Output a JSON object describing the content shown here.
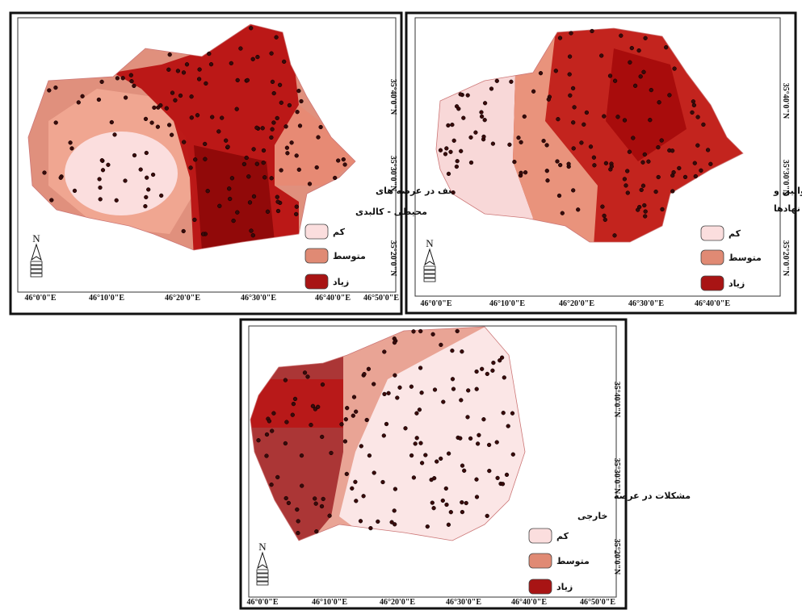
{
  "maps": [
    {
      "legend_title": "ضعف در عرصه های",
      "legend_subtitle": "محیطی - کالبدی",
      "legend": [
        "کم",
        "متوسط",
        "زیاد"
      ],
      "north": "N",
      "x_ticks": [
        "46°0'0\"E",
        "46°10'0\"E",
        "46°20'0\"E",
        "46°30'0\"E",
        "46°40'0\"E",
        "46°50'0\"E"
      ],
      "y_ticks": [
        "35°40'0\"N",
        "35°30'0\"N",
        "35°20'0\"N"
      ]
    },
    {
      "legend_title": "ضعف قوانین و",
      "legend_subtitle": "عملکرد نهادها",
      "legend": [
        "کم",
        "متوسط",
        "زیاد"
      ],
      "north": "N",
      "x_ticks": [
        "46°0'0\"E",
        "46°10'0\"E",
        "46°20'0\"E",
        "46°30'0\"E",
        "46°40'0\"E"
      ],
      "y_ticks": [
        "35°40'0\"N",
        "35°30'0\"N",
        "35°20'0\"N"
      ]
    },
    {
      "legend_title": "مشکلات در عرصه",
      "legend_subtitle": "خارجی",
      "legend": [
        "کم",
        "متوسط",
        "زیاد"
      ],
      "north": "N",
      "x_ticks": [
        "46°0'0\"E",
        "46°10'0\"E",
        "46°20'0\"E",
        "46°30'0\"E",
        "46°40'0\"E",
        "46°50'0\"E"
      ],
      "y_ticks": [
        "35°40'0\"N",
        "35°30'0\"N",
        "35°20'0\"N"
      ]
    }
  ]
}
